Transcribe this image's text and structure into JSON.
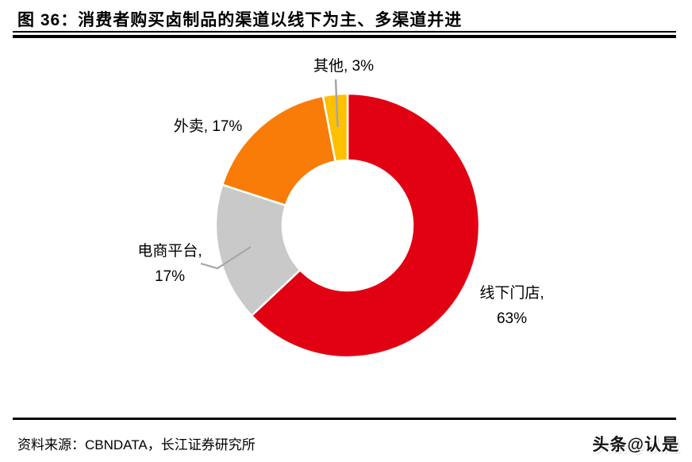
{
  "header": {
    "figure_label": "图 36：",
    "title": "图 36：消费者购买卤制品的渠道以线下为主、多渠道并进"
  },
  "chart_data": {
    "type": "pie",
    "subtype": "donut",
    "title": "消费者购买卤制品的渠道以线下为主、多渠道并进",
    "unit": "%",
    "legend": "none",
    "categories": [
      "线下门店",
      "电商平台",
      "外卖",
      "其他"
    ],
    "values": [
      63,
      17,
      17,
      3
    ],
    "slices": [
      {
        "key": "offline-stores",
        "name": "线下门店",
        "value": 63,
        "color": "#E10113",
        "label_lines": [
          "线下门店,",
          "63%"
        ]
      },
      {
        "key": "ecommerce-platform",
        "name": "电商平台",
        "value": 17,
        "color": "#C9C9C9",
        "label_lines": [
          "电商平台,",
          "17%"
        ]
      },
      {
        "key": "takeout",
        "name": "外卖",
        "value": 17,
        "color": "#F97C08",
        "label_lines": [
          "外卖, 17%"
        ]
      },
      {
        "key": "other",
        "name": "其他",
        "value": 3,
        "color": "#FFC000",
        "label_lines": [
          "其他, 3%"
        ]
      }
    ],
    "leader_line_color": "#A6A6A6"
  },
  "footer": {
    "source": "资料来源：CBNDATA，长江证券研究所",
    "watermark": "头条@认是"
  }
}
